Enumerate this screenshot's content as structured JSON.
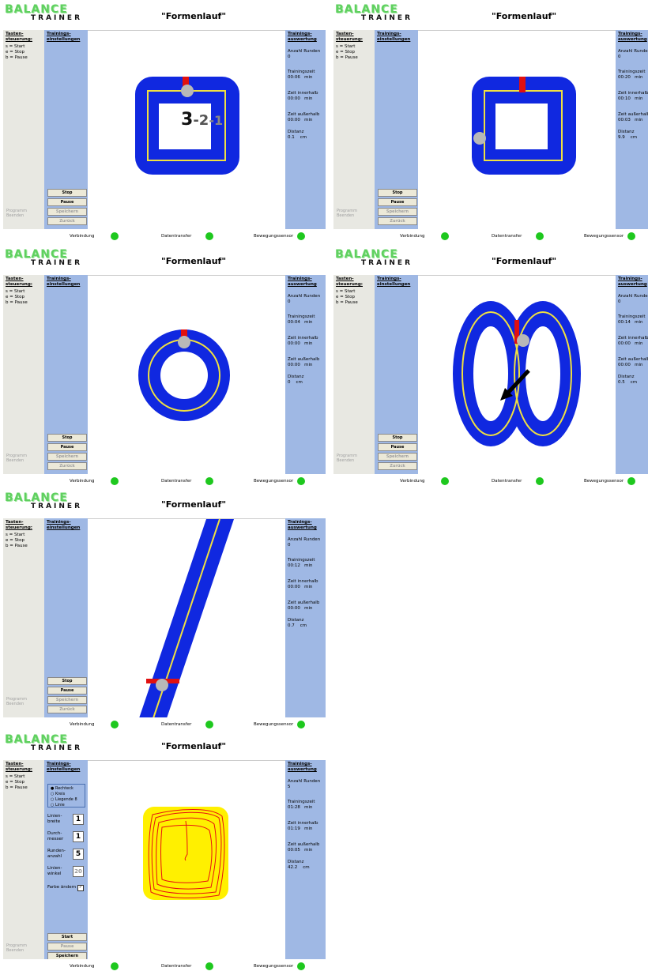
{
  "app": {
    "logo_brand": "BALANCE",
    "logo_sub": "TRAINER",
    "title": "\"Formenlauf\""
  },
  "keys": {
    "heading": "Tasten-steuerung:",
    "start": "s = Start",
    "stop": "e = Stop",
    "pause": "b = Pause"
  },
  "left": {
    "heading": "Trainings-einstellungen",
    "program_end": "Programm Beenden",
    "btn_stop": "Stop",
    "btn_start": "Start",
    "btn_pause": "Pause",
    "btn_save": "Speichern",
    "btn_back": "Zurück"
  },
  "right": {
    "heading": "Trainings-auswertung",
    "rounds_label": "Anzahl Runden",
    "time_label": "Trainingszeit",
    "inside_label": "Zeit innerhalb",
    "outside_label": "Zeit außerhalb",
    "distance_label": "Distanz",
    "unit_min": "min",
    "unit_cm": "cm"
  },
  "status": {
    "connection": "Verbindung",
    "transfer": "Datentransfer",
    "sensor": "Bewegungssensor"
  },
  "panels": [
    {
      "rounds": "0",
      "time": "00:06",
      "inside": "00:00",
      "outside": "00:00",
      "distance": "0.1"
    },
    {
      "rounds": "0",
      "time": "00:20",
      "inside": "00:10",
      "outside": "00:03",
      "distance": "9.9"
    },
    {
      "rounds": "0",
      "time": "00:04",
      "inside": "00:00",
      "outside": "00:00",
      "distance": "0"
    },
    {
      "rounds": "0",
      "time": "00:14",
      "inside": "00:00",
      "outside": "00:00",
      "distance": "0.5"
    },
    {
      "rounds": "0",
      "time": "00:12",
      "inside": "00:00",
      "outside": "00:00",
      "distance": "0.7"
    },
    {
      "rounds": "5",
      "time": "01:28",
      "inside": "01:19",
      "outside": "00:05",
      "distance": "42.2"
    }
  ],
  "countdown": {
    "three": "3",
    "two": "-2",
    "one": "-1"
  },
  "settings": {
    "shape_options": [
      "Rechteck",
      "Kreis",
      "Liegende 8",
      "Linie"
    ],
    "line_width_label": "Linien-breite",
    "line_width_value": "1",
    "diameter_label": "Durch-messer",
    "diameter_value": "1",
    "rounds_label": "Runden-anzahl",
    "rounds_value": "5",
    "angle_label": "Linien-winkel",
    "angle_value": "20",
    "color_label": "Farbe ändern"
  },
  "colors": {
    "track": "#1028e0",
    "guide": "#f0e040",
    "marker": "#e01010",
    "ball": "#b8b8b8",
    "panel_blue": "#9fb8e4",
    "status_green": "#1ec81e",
    "result_bg": "#fff000",
    "result_trace": "#e81010"
  }
}
